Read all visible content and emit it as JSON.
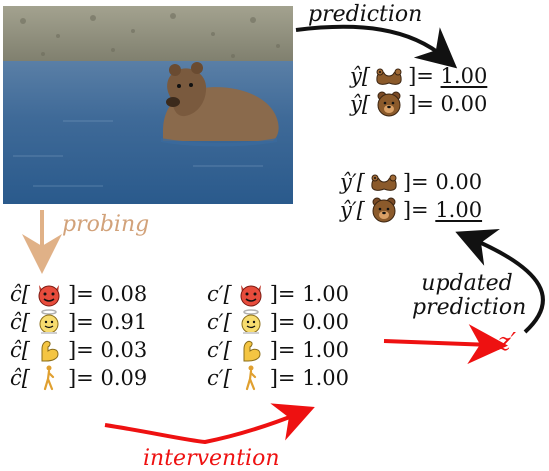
{
  "labels": {
    "prediction": "prediction",
    "probing": "probing",
    "updated_prediction_line1": "updated",
    "updated_prediction_line2": "prediction",
    "intervention": "intervention",
    "z_prime": "z′"
  },
  "prediction": {
    "rows": [
      {
        "symbol": "ŷ[",
        "close": "]=",
        "value": "1.00",
        "underlined": true,
        "icon": "otter-icon"
      },
      {
        "symbol": "ŷ[",
        "close": "]=",
        "value": "0.00",
        "underlined": false,
        "icon": "bear-icon"
      }
    ]
  },
  "updated_prediction": {
    "rows": [
      {
        "symbol": "ŷ′[",
        "close": "]=",
        "value": "0.00",
        "underlined": false,
        "icon": "otter-icon"
      },
      {
        "symbol": "ŷ′[",
        "close": "]=",
        "value": "1.00",
        "underlined": true,
        "icon": "bear-icon"
      }
    ]
  },
  "concepts": {
    "rows": [
      {
        "symbol": "ĉ[",
        "close": "]=",
        "value": "0.08",
        "icon": "devil-face-icon"
      },
      {
        "symbol": "ĉ[",
        "close": "]=",
        "value": "0.91",
        "icon": "angel-face-icon"
      },
      {
        "symbol": "ĉ[",
        "close": "]=",
        "value": "0.03",
        "icon": "flexed-biceps-icon"
      },
      {
        "symbol": "ĉ[",
        "close": "]=",
        "value": "0.09",
        "icon": "walking-person-icon"
      }
    ]
  },
  "intervened_concepts": {
    "rows": [
      {
        "symbol": "c′[",
        "close": "]=",
        "value": "1.00",
        "icon": "devil-face-icon"
      },
      {
        "symbol": "c′[",
        "close": "]=",
        "value": "0.00",
        "icon": "angel-face-icon"
      },
      {
        "symbol": "c′[",
        "close": "]=",
        "value": "1.00",
        "icon": "flexed-biceps-icon"
      },
      {
        "symbol": "c′[",
        "close": "]=",
        "value": "1.00",
        "icon": "walking-person-icon"
      }
    ]
  },
  "colors": {
    "probing": "#e0b187",
    "intervention": "#ee1111",
    "black": "#111111"
  }
}
